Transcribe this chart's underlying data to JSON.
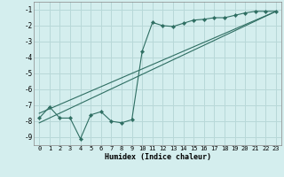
{
  "xlabel": "Humidex (Indice chaleur)",
  "bg_color": "#d4eeee",
  "grid_color": "#b8d8d8",
  "line_color": "#2e6e62",
  "xlim": [
    -0.5,
    23.5
  ],
  "ylim": [
    -9.5,
    -0.5
  ],
  "xticks": [
    0,
    1,
    2,
    3,
    4,
    5,
    6,
    7,
    8,
    9,
    10,
    11,
    12,
    13,
    14,
    15,
    16,
    17,
    18,
    19,
    20,
    21,
    22,
    23
  ],
  "yticks": [
    -9,
    -8,
    -7,
    -6,
    -5,
    -4,
    -3,
    -2,
    -1
  ],
  "curve1_x": [
    0,
    1,
    2,
    3,
    4,
    5,
    6,
    7,
    8,
    9,
    10,
    11,
    12,
    13,
    14,
    15,
    16,
    17,
    18,
    19,
    20,
    21,
    22,
    23
  ],
  "curve1_y": [
    -7.8,
    -7.1,
    -7.8,
    -7.8,
    -9.1,
    -7.6,
    -7.4,
    -8.0,
    -8.1,
    -7.9,
    -3.6,
    -1.8,
    -2.0,
    -2.05,
    -1.85,
    -1.65,
    -1.6,
    -1.5,
    -1.5,
    -1.35,
    -1.2,
    -1.1,
    -1.1,
    -1.1
  ],
  "line2_x": [
    0,
    23
  ],
  "line2_y": [
    -7.5,
    -1.1
  ],
  "line3_x": [
    0,
    23
  ],
  "line3_y": [
    -8.1,
    -1.1
  ]
}
